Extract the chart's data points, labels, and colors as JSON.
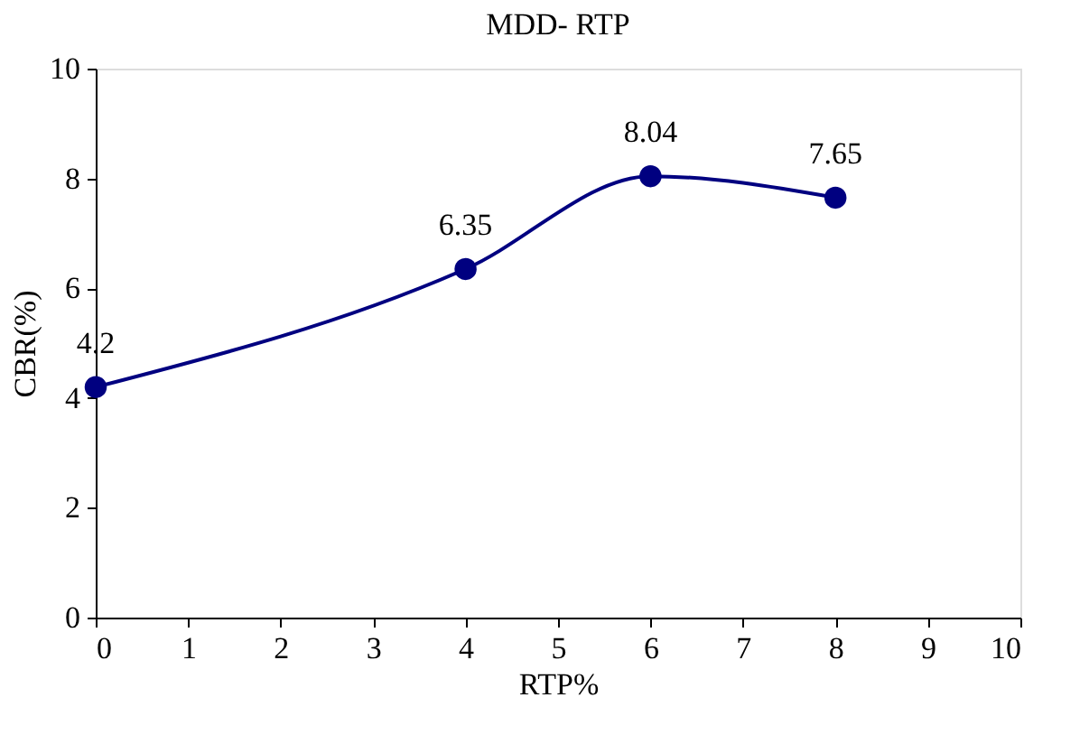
{
  "chart_data": {
    "type": "line",
    "title": "MDD- RTP",
    "xlabel": "RTP%",
    "ylabel": "CBR(%)",
    "x": [
      0,
      4,
      6,
      8
    ],
    "series": [
      {
        "color": "#000080",
        "values": [
          4.2,
          6.35,
          8.04,
          7.65
        ]
      }
    ],
    "xlim": [
      0,
      10
    ],
    "xticks": [
      0,
      1,
      2,
      3,
      4,
      5,
      6,
      7,
      8,
      9,
      10
    ],
    "ylim": [
      0,
      10
    ],
    "yticks": [
      0,
      2,
      4,
      6,
      8,
      10
    ],
    "data_labels": true,
    "grid": false,
    "marker": "circle",
    "line_style": "solid"
  }
}
